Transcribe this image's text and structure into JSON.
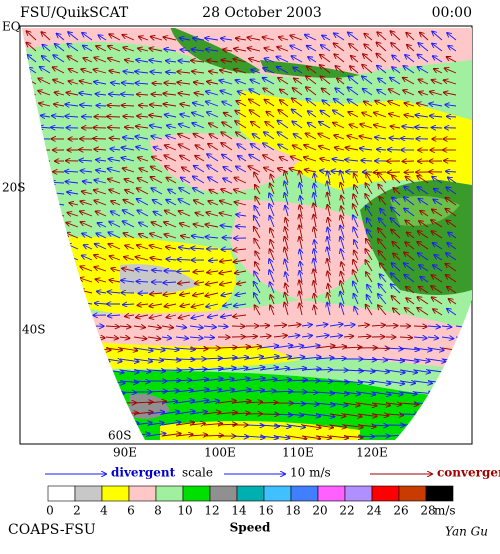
{
  "header": {
    "left": "FSU/QuikSCAT",
    "date": "28 October 2003",
    "time": "00:00"
  },
  "lat_labels": [
    "EQ",
    "20S",
    "40S",
    "60S"
  ],
  "lon_labels": [
    "90E",
    "100E",
    "110E",
    "120E"
  ],
  "legend": {
    "divergent": "divergent",
    "scale": "scale",
    "scale_value": "10 m/s",
    "convergent": "convergent"
  },
  "colorbar": {
    "labels": [
      "0",
      "2",
      "4",
      "6",
      "8",
      "10",
      "12",
      "14",
      "16",
      "18",
      "20",
      "22",
      "24",
      "26",
      "28"
    ],
    "unit": "m/s",
    "title": "Speed",
    "colors": [
      "#ffffff",
      "#c8c8c8",
      "#ffff00",
      "#ffc8c8",
      "#a0f0a0",
      "#00e000",
      "#909090",
      "#00b0b0",
      "#40c0ff",
      "#4080ff",
      "#ff60ff",
      "#b090ff",
      "#ff0000",
      "#c83c00",
      "#000000"
    ]
  },
  "footer": {
    "org": "COAPS-FSU",
    "author": "Yan Gu"
  }
}
